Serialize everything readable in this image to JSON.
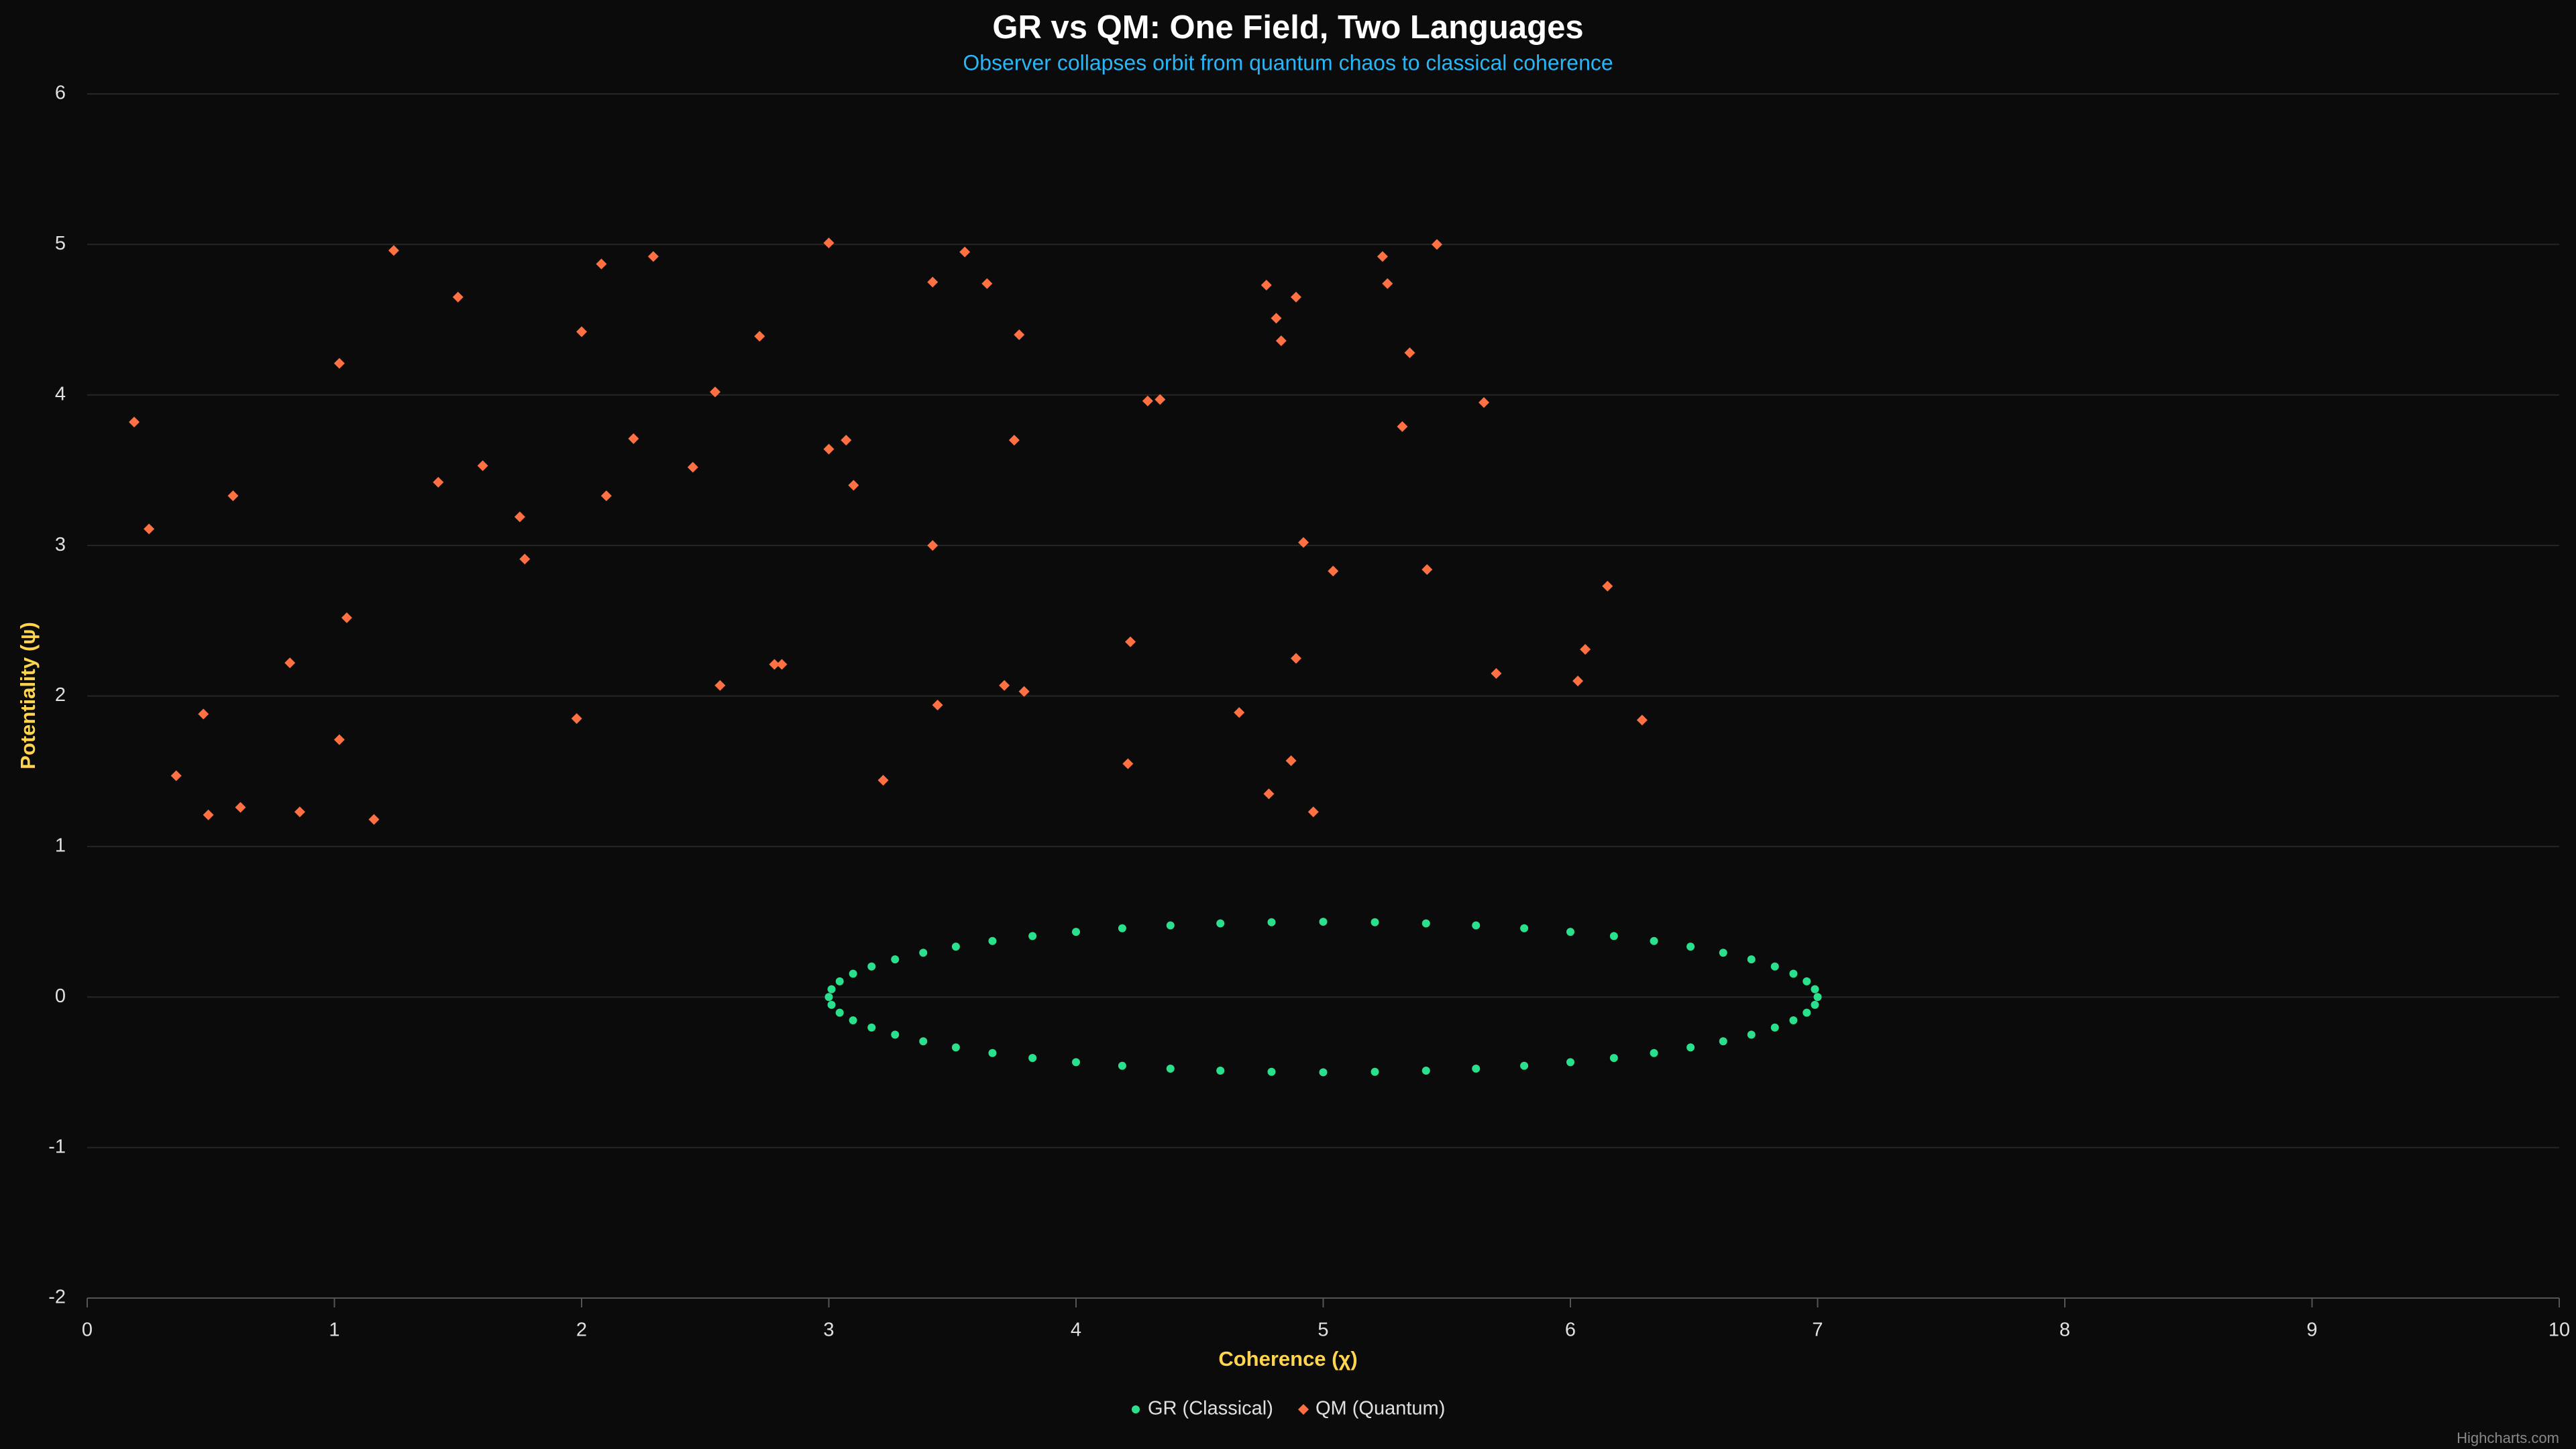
{
  "chart_data": {
    "type": "scatter",
    "title": "GR vs QM: One Field, Two Languages",
    "subtitle": "Observer collapses orbit from quantum chaos to classical coherence",
    "x_label": "Coherence (χ)",
    "y_label": "Potentiality (ψ)",
    "xlim": [
      0,
      10
    ],
    "xticks": [
      0,
      1,
      2,
      3,
      4,
      5,
      6,
      7,
      8,
      9,
      10
    ],
    "ylim": [
      -2,
      6
    ],
    "yticks": [
      -2,
      -1,
      0,
      1,
      2,
      3,
      4,
      5,
      6
    ],
    "grid": true,
    "legend": "bottom",
    "credits": "Highcharts.com",
    "series": [
      {
        "name": "GR (Classical)",
        "color": "#2be08c",
        "marker": "circle",
        "x": [
          7,
          6.989,
          6.956,
          6.902,
          6.827,
          6.732,
          6.618,
          6.486,
          6.338,
          6.176,
          6.0,
          5.813,
          5.618,
          5.416,
          5.209,
          5,
          4.791,
          4.584,
          4.382,
          4.187,
          4.0,
          3.824,
          3.662,
          3.514,
          3.382,
          3.268,
          3.173,
          3.098,
          3.044,
          3.011,
          3,
          3.011,
          3.044,
          3.098,
          3.173,
          3.268,
          3.382,
          3.514,
          3.662,
          3.824,
          4.0,
          4.187,
          4.382,
          4.584,
          4.791,
          5,
          5.209,
          5.416,
          5.618,
          5.813,
          6.0,
          6.176,
          6.338,
          6.486,
          6.618,
          6.732,
          6.827,
          6.902,
          6.956,
          6.989
        ],
        "values": [
          0,
          0.052,
          0.104,
          0.155,
          0.203,
          0.25,
          0.294,
          0.335,
          0.372,
          0.405,
          0.433,
          0.457,
          0.476,
          0.489,
          0.497,
          0.5,
          0.497,
          0.489,
          0.476,
          0.457,
          0.433,
          0.405,
          0.372,
          0.335,
          0.294,
          0.25,
          0.203,
          0.155,
          0.104,
          0.052,
          0,
          -0.052,
          -0.104,
          -0.155,
          -0.203,
          -0.25,
          -0.294,
          -0.335,
          -0.372,
          -0.405,
          -0.433,
          -0.457,
          -0.476,
          -0.489,
          -0.497,
          -0.5,
          -0.497,
          -0.489,
          -0.476,
          -0.457,
          -0.433,
          -0.405,
          -0.372,
          -0.335,
          -0.294,
          -0.25,
          -0.203,
          -0.155,
          -0.104,
          -0.052
        ]
      },
      {
        "name": "QM (Quantum)",
        "color": "#ff7043",
        "marker": "diamond",
        "x": [
          0.19,
          0.25,
          0.36,
          0.47,
          0.49,
          0.59,
          0.62,
          0.82,
          0.86,
          1.02,
          1.02,
          1.05,
          1.16,
          1.24,
          1.42,
          1.5,
          1.6,
          1.75,
          1.77,
          1.98,
          2.0,
          2.08,
          2.1,
          2.21,
          2.29,
          2.45,
          2.54,
          2.56,
          2.72,
          2.78,
          2.81,
          3.0,
          3.0,
          3.07,
          3.1,
          3.22,
          3.42,
          3.42,
          3.44,
          3.55,
          3.64,
          3.71,
          3.75,
          3.77,
          3.79,
          4.21,
          4.22,
          4.29,
          4.34,
          4.66,
          4.77,
          4.78,
          4.81,
          4.83,
          4.87,
          4.89,
          4.89,
          4.92,
          4.96,
          5.04,
          5.24,
          5.26,
          5.32,
          5.35,
          5.42,
          5.46,
          5.65,
          5.7,
          6.03,
          6.06,
          6.15,
          6.29
        ],
        "values": [
          3.82,
          3.11,
          1.47,
          1.88,
          1.21,
          3.33,
          1.26,
          2.22,
          1.23,
          4.21,
          1.71,
          2.52,
          1.18,
          4.96,
          3.42,
          4.65,
          3.53,
          3.19,
          2.91,
          1.85,
          4.42,
          4.87,
          3.33,
          3.71,
          4.92,
          3.52,
          4.02,
          2.07,
          4.39,
          2.21,
          2.21,
          5.01,
          3.64,
          3.7,
          3.4,
          1.44,
          3.0,
          4.75,
          1.94,
          4.95,
          4.74,
          2.07,
          3.7,
          4.4,
          2.03,
          1.55,
          2.36,
          3.96,
          3.97,
          1.89,
          4.73,
          1.35,
          4.51,
          4.36,
          1.57,
          4.65,
          2.25,
          3.02,
          1.23,
          2.83,
          4.92,
          4.74,
          3.79,
          4.28,
          2.84,
          5.0,
          3.95,
          2.15,
          2.1,
          2.31,
          2.73,
          1.84
        ]
      }
    ]
  }
}
